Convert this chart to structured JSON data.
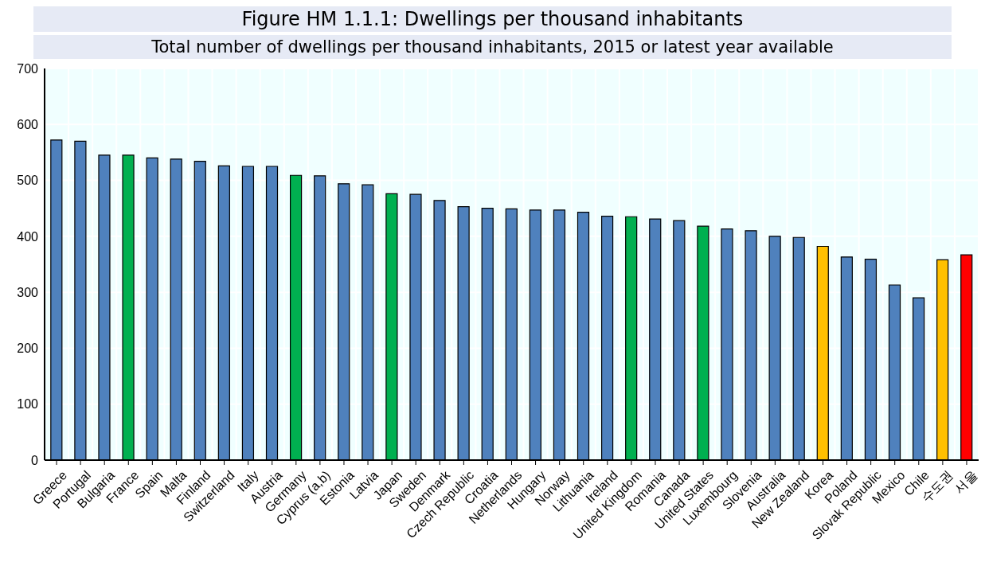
{
  "chart_data": {
    "type": "bar",
    "title": "Figure HM 1.1.1: Dwellings per thousand inhabitants",
    "subtitle": "Total number of dwellings per thousand inhabitants, 2015 or latest year available",
    "categories": [
      "Greece",
      "Portugal",
      "Bulgaria",
      "France",
      "Spain",
      "Malta",
      "Finland",
      "Switzerland",
      "Italy",
      "Austria",
      "Germany",
      "Cyprus (a,b)",
      "Estonia",
      "Latvia",
      "Japan",
      "Sweden",
      "Denmark",
      "Czech Republic",
      "Croatia",
      "Netherlands",
      "Hungary",
      "Norway",
      "Lithuania",
      "Ireland",
      "United Kingdom",
      "Romania",
      "Canada",
      "United States",
      "Luxembourg",
      "Slovenia",
      "Australia",
      "New Zealand",
      "Korea",
      "Poland",
      "Slovak Republic",
      "Mexico",
      "Chile",
      "수도권",
      "서울"
    ],
    "values": [
      572,
      570,
      545,
      545,
      540,
      538,
      534,
      526,
      525,
      525,
      509,
      508,
      494,
      492,
      476,
      475,
      464,
      453,
      450,
      449,
      447,
      447,
      443,
      436,
      435,
      431,
      428,
      418,
      413,
      410,
      400,
      398,
      382,
      363,
      359,
      313,
      290,
      358,
      367
    ],
    "colors": [
      "#4f81bd",
      "#4f81bd",
      "#4f81bd",
      "#00b050",
      "#4f81bd",
      "#4f81bd",
      "#4f81bd",
      "#4f81bd",
      "#4f81bd",
      "#4f81bd",
      "#00b050",
      "#4f81bd",
      "#4f81bd",
      "#4f81bd",
      "#00b050",
      "#4f81bd",
      "#4f81bd",
      "#4f81bd",
      "#4f81bd",
      "#4f81bd",
      "#4f81bd",
      "#4f81bd",
      "#4f81bd",
      "#4f81bd",
      "#00b050",
      "#4f81bd",
      "#4f81bd",
      "#00b050",
      "#4f81bd",
      "#4f81bd",
      "#4f81bd",
      "#4f81bd",
      "#ffc000",
      "#4f81bd",
      "#4f81bd",
      "#4f81bd",
      "#4f81bd",
      "#ffc000",
      "#ff0000"
    ],
    "ylim": [
      0,
      700
    ],
    "yticks": [
      0,
      100,
      200,
      300,
      400,
      500,
      600,
      700
    ],
    "grid": true
  }
}
